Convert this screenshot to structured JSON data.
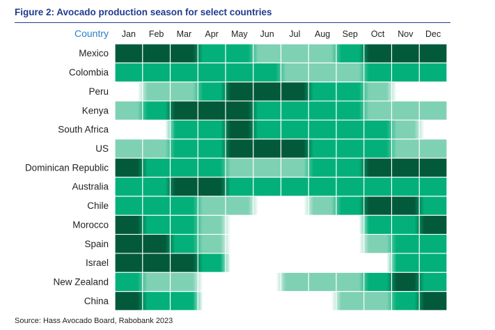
{
  "title": "Figure 2: Avocado production season for select countries",
  "source": "Source: Hass Avocado Board, Rabobank 2023",
  "chart_data": {
    "type": "heatmap",
    "title": "Figure 2: Avocado production season for select countries",
    "row_header": "Country",
    "columns": [
      "Jan",
      "Feb",
      "Mar",
      "Apr",
      "May",
      "Jun",
      "Jul",
      "Aug",
      "Sep",
      "Oct",
      "Nov",
      "Dec"
    ],
    "rows": [
      "Mexico",
      "Colombia",
      "Peru",
      "Kenya",
      "South Africa",
      "US",
      "Dominican Republic",
      "Australia",
      "Chile",
      "Morocco",
      "Spain",
      "Israel",
      "New Zealand",
      "China"
    ],
    "levels_note": "0 = no production, 1 = light, 2 = medium, 3 = peak",
    "values": [
      [
        3,
        3,
        3,
        2,
        2,
        1,
        1,
        1,
        2,
        3,
        3,
        3
      ],
      [
        2,
        2,
        2,
        2,
        2,
        2,
        1,
        1,
        1,
        2,
        2,
        2
      ],
      [
        0,
        1,
        1,
        2,
        3,
        3,
        3,
        2,
        2,
        1,
        0,
        0
      ],
      [
        1,
        2,
        3,
        3,
        3,
        2,
        2,
        2,
        2,
        1,
        1,
        1
      ],
      [
        0,
        0,
        2,
        2,
        3,
        2,
        2,
        2,
        2,
        2,
        1,
        0
      ],
      [
        1,
        1,
        2,
        2,
        3,
        3,
        3,
        2,
        2,
        2,
        1,
        1
      ],
      [
        3,
        2,
        2,
        2,
        1,
        1,
        1,
        2,
        2,
        3,
        3,
        3
      ],
      [
        2,
        2,
        3,
        3,
        2,
        2,
        2,
        2,
        2,
        2,
        2,
        2
      ],
      [
        2,
        2,
        2,
        1,
        1,
        0,
        0,
        1,
        2,
        3,
        3,
        2
      ],
      [
        3,
        2,
        2,
        1,
        0,
        0,
        0,
        0,
        0,
        2,
        2,
        3
      ],
      [
        3,
        3,
        2,
        1,
        0,
        0,
        0,
        0,
        0,
        1,
        2,
        2
      ],
      [
        3,
        3,
        3,
        2,
        0,
        0,
        0,
        0,
        0,
        0,
        2,
        2
      ],
      [
        2,
        1,
        1,
        0,
        0,
        0,
        1,
        1,
        1,
        2,
        3,
        2
      ],
      [
        3,
        2,
        2,
        0,
        0,
        0,
        0,
        0,
        1,
        1,
        2,
        3
      ]
    ],
    "colors": {
      "0": "#ffffff",
      "1": "#7fd1b4",
      "2": "#04b07a",
      "3": "#035a3b"
    },
    "row_label_color": "#222222",
    "column_label_color": "#222222",
    "row_header_color": "#2a7fc4",
    "title_color": "#1f3c8c"
  }
}
